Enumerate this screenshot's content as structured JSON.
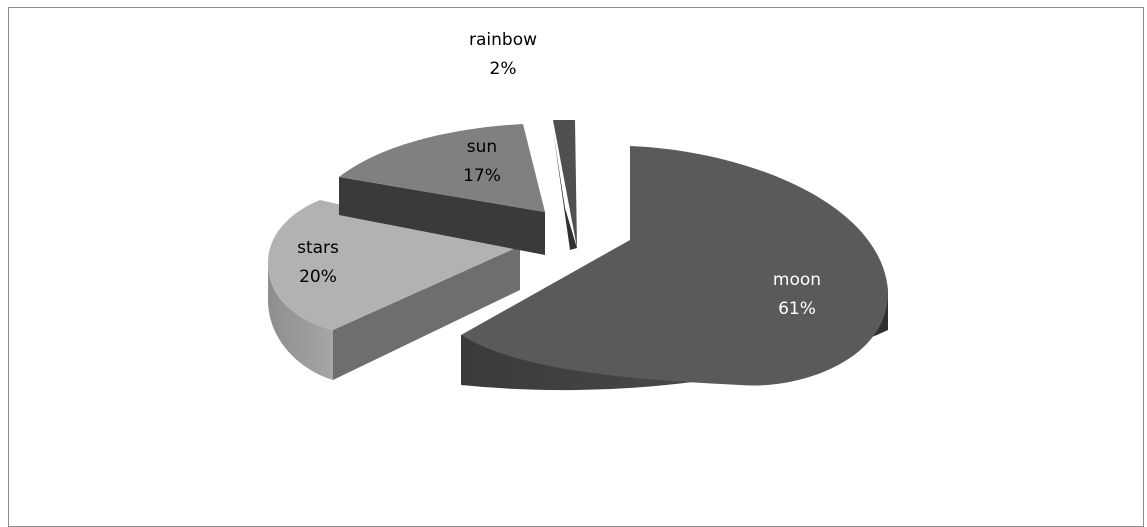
{
  "chart_data": {
    "type": "pie",
    "style": "3d-exploded",
    "title": "",
    "legend": "none",
    "slices": [
      {
        "name": "moon",
        "percent": 61,
        "label": "moon",
        "value_label": "61%",
        "color": "#5a5a5a",
        "side_color": "#3a3a3a",
        "label_color": "#ffffff"
      },
      {
        "name": "stars",
        "percent": 20,
        "label": "stars",
        "value_label": "20%",
        "color": "#b2b2b2",
        "side_color": "#9a9a9a",
        "label_color": "#000000"
      },
      {
        "name": "sun",
        "percent": 17,
        "label": "sun",
        "value_label": "17%",
        "color": "#808080",
        "side_color": "#3a3a3a",
        "label_color": "#000000"
      },
      {
        "name": "rainbow",
        "percent": 2,
        "label": "rainbow",
        "value_label": "2%",
        "color": "#505050",
        "side_color": "#303030",
        "label_color": "#000000"
      }
    ]
  }
}
